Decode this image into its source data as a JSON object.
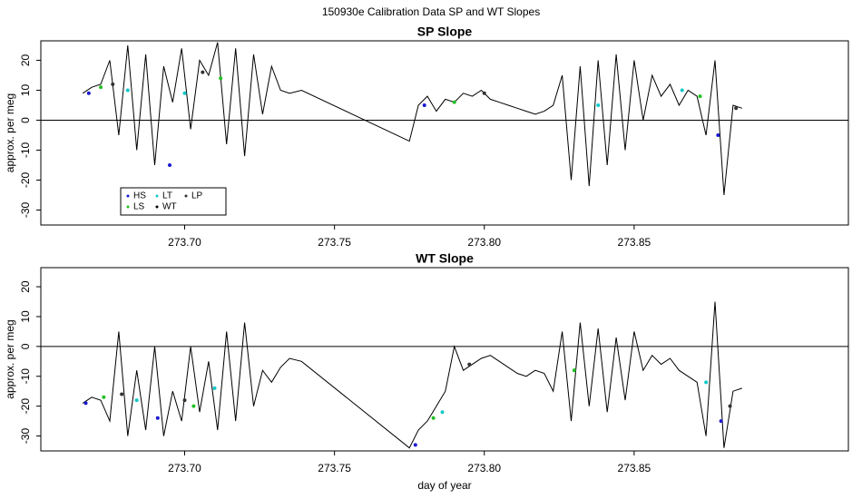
{
  "title": "150930e   Calibration Data SP and WT Slopes",
  "xlabel": "day of year",
  "chart_data": [
    {
      "type": "line",
      "title": "SP Slope",
      "ylabel": "approx. per meg",
      "xlim": [
        273.652,
        273.9215
      ],
      "ylim": [
        -35,
        26.5
      ],
      "xticks": [
        {
          "value": 273.7,
          "label": "273.70"
        },
        273.75,
        {
          "value": 273.8,
          "label": "273.80"
        },
        273.85
      ],
      "yticks": [
        -30,
        -20,
        -10,
        0,
        10,
        20
      ],
      "hline": 0,
      "legend": "bottomleft",
      "series": [
        {
          "name": "HS",
          "color": "#1a1ad0",
          "mode": "points",
          "x": [
            273.668,
            273.695,
            273.78,
            273.878
          ],
          "values": [
            9,
            -15,
            5,
            -5
          ]
        },
        {
          "name": "LS",
          "color": "#22c022",
          "mode": "points",
          "x": [
            273.672,
            273.712,
            273.79,
            273.872
          ],
          "values": [
            11,
            14,
            6,
            8
          ]
        },
        {
          "name": "LT",
          "color": "#10c8c8",
          "mode": "points",
          "x": [
            273.681,
            273.7,
            273.838,
            273.866
          ],
          "values": [
            10,
            9,
            5,
            10
          ]
        },
        {
          "name": "WT",
          "color": "#000000",
          "mode": "line",
          "x": [
            273.666,
            273.669,
            273.672,
            273.675,
            273.678,
            273.681,
            273.684,
            273.687,
            273.69,
            273.693,
            273.696,
            273.699,
            273.702,
            273.705,
            273.708,
            273.711,
            273.714,
            273.717,
            273.72,
            273.723,
            273.726,
            273.729,
            273.732,
            273.735,
            273.739,
            273.775,
            273.778,
            273.781,
            273.784,
            273.787,
            273.79,
            273.793,
            273.796,
            273.799,
            273.802,
            273.805,
            273.808,
            273.811,
            273.814,
            273.817,
            273.82,
            273.823,
            273.826,
            273.829,
            273.832,
            273.835,
            273.838,
            273.841,
            273.844,
            273.847,
            273.85,
            273.853,
            273.856,
            273.859,
            273.862,
            273.865,
            273.868,
            273.871,
            273.874,
            273.877,
            273.88,
            273.883,
            273.886
          ],
          "values": [
            9,
            11,
            12,
            20,
            -5,
            25,
            -10,
            22,
            -15,
            18,
            6,
            24,
            -3,
            20,
            15,
            26,
            -8,
            24,
            -12,
            22,
            2,
            18,
            10,
            9,
            10,
            -7,
            5,
            8,
            3,
            7,
            6,
            9,
            8,
            10,
            7,
            6,
            5,
            4,
            3,
            2,
            3,
            5,
            15,
            -20,
            18,
            -22,
            20,
            -15,
            22,
            -10,
            20,
            0,
            15,
            8,
            12,
            5,
            10,
            8,
            -5,
            20,
            -25,
            5,
            4
          ]
        },
        {
          "name": "LP",
          "color": "#333333",
          "mode": "points",
          "x": [
            273.676,
            273.706,
            273.8,
            273.884
          ],
          "values": [
            12,
            16,
            9,
            4
          ]
        }
      ]
    },
    {
      "type": "line",
      "title": "WT Slope",
      "ylabel": "approx. per meg",
      "xlim": [
        273.652,
        273.9215
      ],
      "ylim": [
        -35,
        26.4
      ],
      "xticks": [
        {
          "value": 273.7,
          "label": "273.70"
        },
        273.75,
        {
          "value": 273.8,
          "label": "273.80"
        },
        273.85
      ],
      "yticks": [
        -30,
        -20,
        -10,
        0,
        10,
        20
      ],
      "hline": 0,
      "series": [
        {
          "name": "HS",
          "color": "#1a1ad0",
          "mode": "points",
          "x": [
            273.667,
            273.691,
            273.777,
            273.879
          ],
          "values": [
            -19,
            -24,
            -33,
            -25
          ]
        },
        {
          "name": "LS",
          "color": "#22c022",
          "mode": "points",
          "x": [
            273.673,
            273.703,
            273.783,
            273.83
          ],
          "values": [
            -17,
            -20,
            -24,
            -8
          ]
        },
        {
          "name": "LT",
          "color": "#10c8c8",
          "mode": "points",
          "x": [
            273.684,
            273.71,
            273.786,
            273.874
          ],
          "values": [
            -18,
            -14,
            -22,
            -12
          ]
        },
        {
          "name": "WT",
          "color": "#000000",
          "mode": "line",
          "x": [
            273.666,
            273.669,
            273.672,
            273.675,
            273.678,
            273.681,
            273.684,
            273.687,
            273.69,
            273.693,
            273.696,
            273.699,
            273.702,
            273.705,
            273.708,
            273.711,
            273.714,
            273.717,
            273.72,
            273.723,
            273.726,
            273.729,
            273.732,
            273.735,
            273.739,
            273.775,
            273.778,
            273.781,
            273.784,
            273.787,
            273.79,
            273.793,
            273.796,
            273.799,
            273.802,
            273.805,
            273.808,
            273.811,
            273.814,
            273.817,
            273.82,
            273.823,
            273.826,
            273.829,
            273.832,
            273.835,
            273.838,
            273.841,
            273.844,
            273.847,
            273.85,
            273.853,
            273.856,
            273.859,
            273.862,
            273.865,
            273.868,
            273.871,
            273.874,
            273.877,
            273.88,
            273.883,
            273.886
          ],
          "values": [
            -19,
            -17,
            -18,
            -25,
            5,
            -30,
            -8,
            -28,
            0,
            -30,
            -15,
            -25,
            0,
            -22,
            -5,
            -28,
            5,
            -25,
            8,
            -20,
            -8,
            -12,
            -7,
            -4,
            -5,
            -34,
            -28,
            -25,
            -20,
            -15,
            0,
            -8,
            -6,
            -4,
            -3,
            -5,
            -7,
            -9,
            -10,
            -8,
            -9,
            -15,
            5,
            -25,
            8,
            -20,
            6,
            -22,
            3,
            -18,
            5,
            -8,
            -3,
            -6,
            -4,
            -8,
            -10,
            -12,
            -30,
            15,
            -34,
            -15,
            -14
          ]
        },
        {
          "name": "LP",
          "color": "#333333",
          "mode": "points",
          "x": [
            273.679,
            273.7,
            273.795,
            273.882
          ],
          "values": [
            -16,
            -18,
            -6,
            -20
          ]
        }
      ]
    }
  ]
}
